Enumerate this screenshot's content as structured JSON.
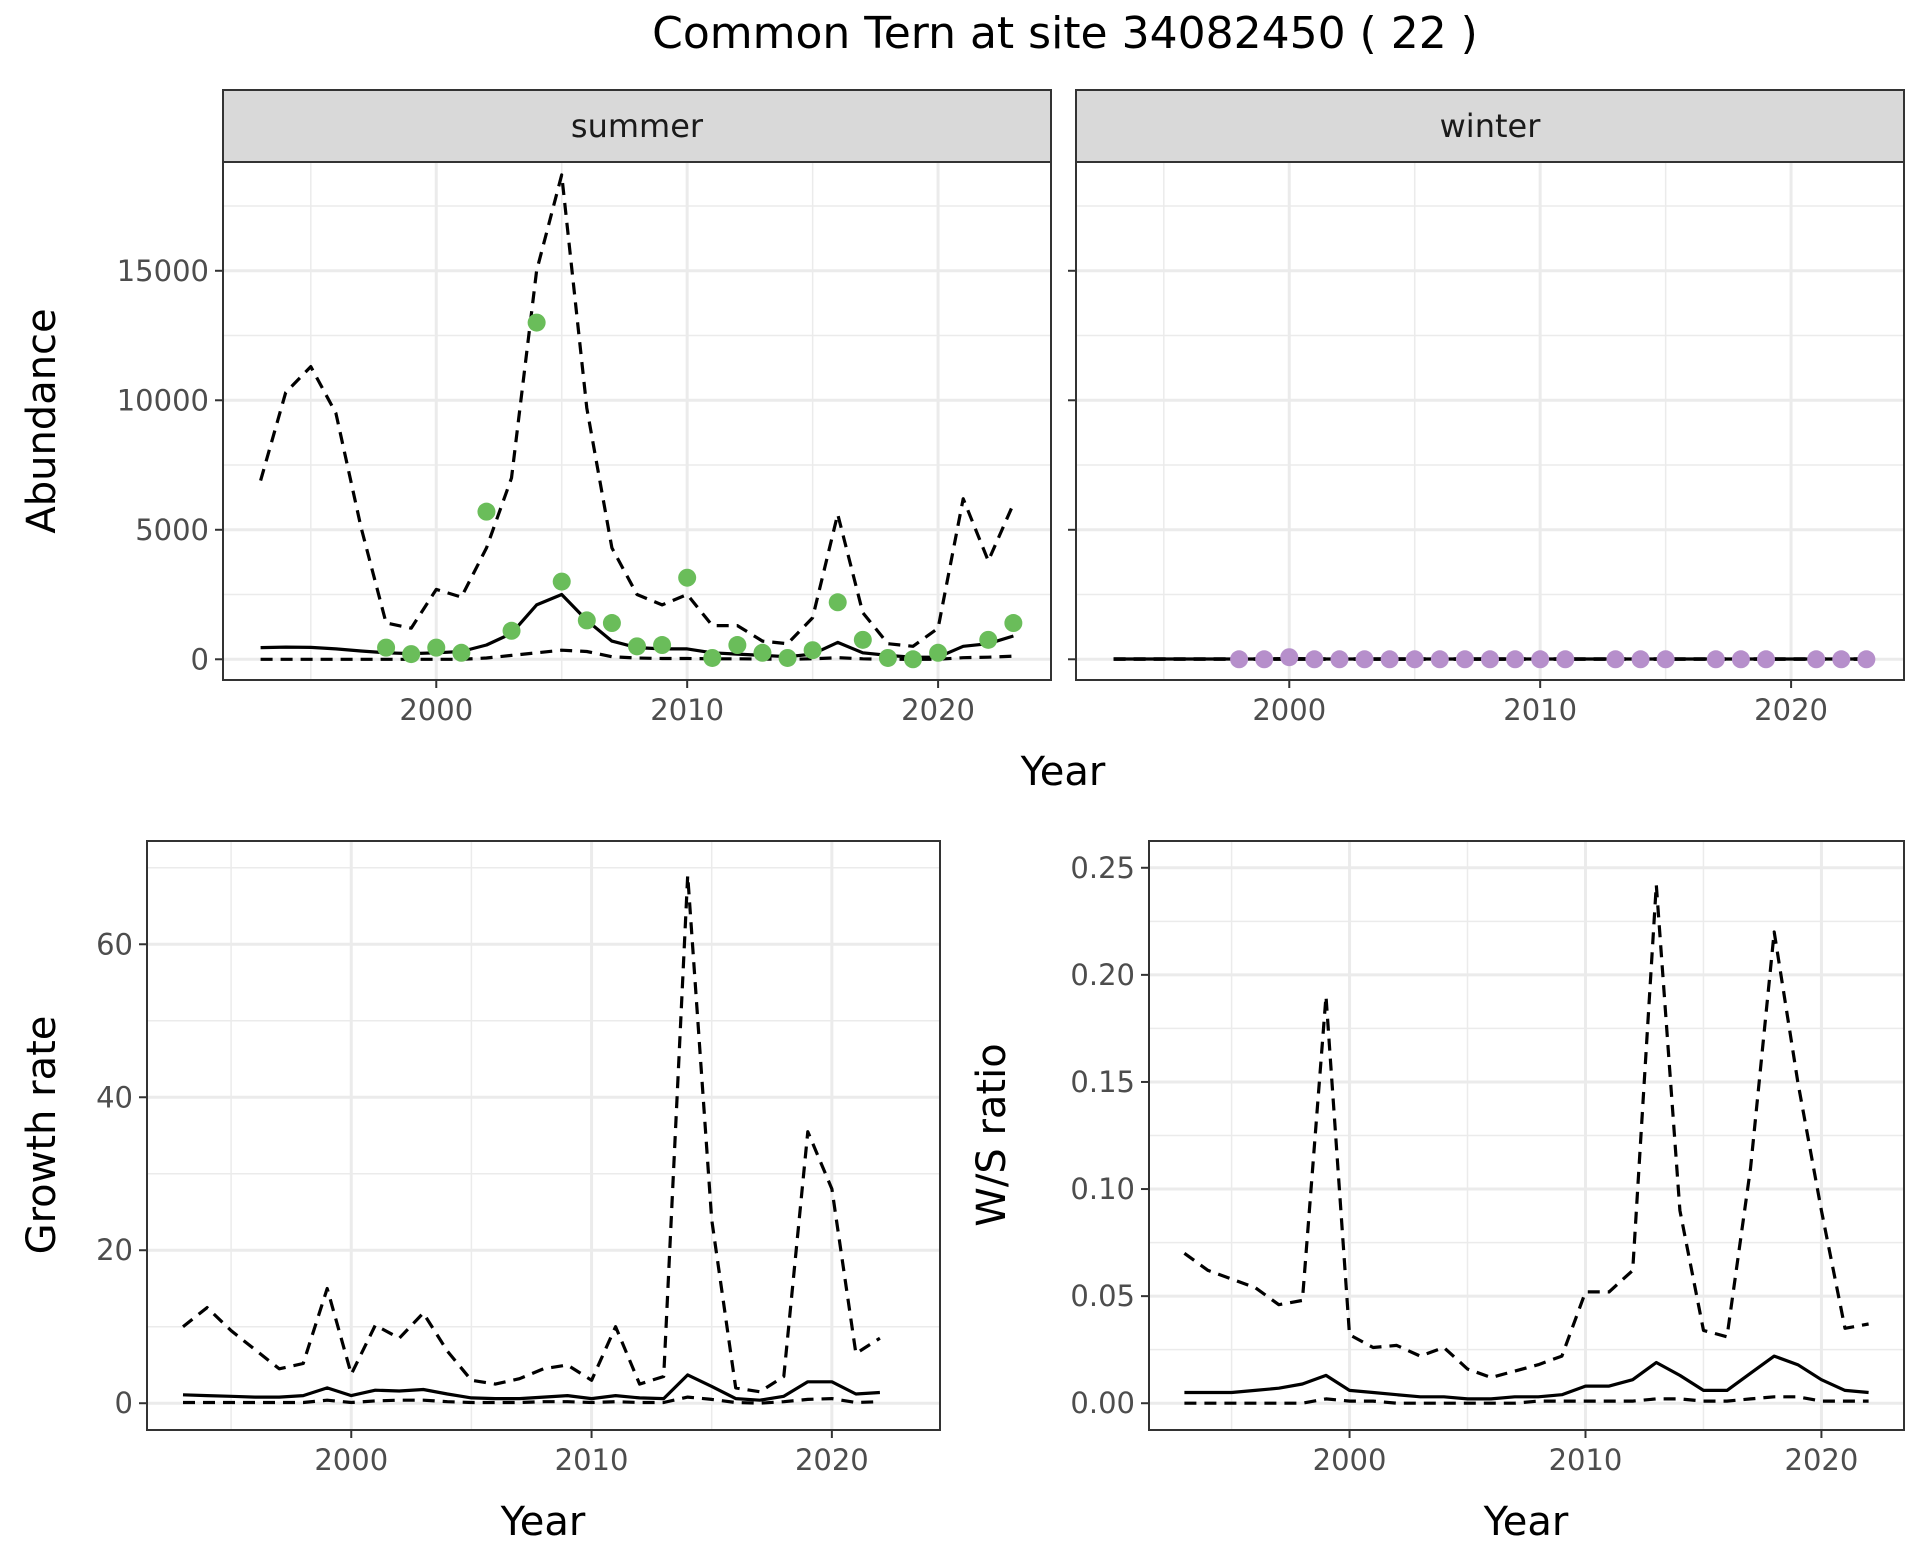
{
  "title": "Common Tern at site 34082450 ( 22 )",
  "colors": {
    "summer_points": "#6abd5a",
    "winter_points": "#b68fcb",
    "lines": "#000000"
  },
  "chart_data": [
    {
      "id": "summer",
      "type": "line",
      "strip": "summer",
      "ylabel": "Abundance",
      "xlabel": "Year",
      "xlim": [
        1991.5,
        2024.5
      ],
      "ylim": [
        -800,
        19200
      ],
      "xticks": [
        2000,
        2010,
        2020
      ],
      "yticks": [
        0,
        5000,
        10000,
        15000
      ],
      "x": [
        1993,
        1994,
        1995,
        1996,
        1997,
        1998,
        1999,
        2000,
        2001,
        2002,
        2003,
        2004,
        2005,
        2006,
        2007,
        2008,
        2009,
        2010,
        2011,
        2012,
        2013,
        2014,
        2015,
        2016,
        2017,
        2018,
        2019,
        2020,
        2021,
        2022,
        2023
      ],
      "estimate": [
        450,
        470,
        460,
        400,
        320,
        250,
        220,
        250,
        300,
        550,
        1000,
        2100,
        2500,
        1500,
        700,
        450,
        400,
        400,
        250,
        200,
        150,
        100,
        200,
        650,
        250,
        150,
        80,
        80,
        500,
        600,
        900
      ],
      "upper": [
        6900,
        10300,
        11300,
        9500,
        5100,
        1400,
        1200,
        2700,
        2400,
        4300,
        7000,
        15000,
        18700,
        9700,
        4300,
        2500,
        2100,
        2500,
        1300,
        1300,
        700,
        600,
        1600,
        5600,
        1800,
        600,
        500,
        1200,
        6200,
        3800,
        6000
      ],
      "lower": [
        0,
        0,
        0,
        0,
        0,
        0,
        0,
        0,
        0,
        50,
        150,
        250,
        350,
        300,
        100,
        50,
        30,
        30,
        20,
        20,
        10,
        0,
        20,
        60,
        20,
        0,
        0,
        0,
        60,
        80,
        120
      ],
      "points": {
        "x": [
          1998,
          1999,
          2000,
          2001,
          2002,
          2003,
          2004,
          2005,
          2006,
          2007,
          2008,
          2009,
          2010,
          2011,
          2012,
          2013,
          2014,
          2015,
          2016,
          2017,
          2018,
          2019,
          2020,
          2022,
          2023
        ],
        "y": [
          450,
          200,
          450,
          250,
          5700,
          1100,
          13000,
          3000,
          1500,
          1400,
          500,
          550,
          3150,
          50,
          550,
          250,
          50,
          350,
          2200,
          750,
          50,
          0,
          250,
          750,
          1400
        ]
      }
    },
    {
      "id": "winter",
      "type": "line",
      "strip": "winter",
      "xlabel": "Year",
      "xlim": [
        1991.5,
        2024.5
      ],
      "ylim": [
        -800,
        19200
      ],
      "xticks": [
        2000,
        2010,
        2020
      ],
      "x": [
        1993,
        1994,
        1995,
        1996,
        1997,
        1998,
        1999,
        2000,
        2001,
        2002,
        2003,
        2004,
        2005,
        2006,
        2007,
        2008,
        2009,
        2010,
        2011,
        2012,
        2013,
        2014,
        2015,
        2016,
        2017,
        2018,
        2019,
        2020,
        2021,
        2022,
        2023
      ],
      "estimate": [
        10,
        10,
        10,
        10,
        10,
        10,
        10,
        15,
        10,
        10,
        10,
        10,
        10,
        10,
        10,
        10,
        10,
        10,
        10,
        10,
        10,
        10,
        10,
        10,
        10,
        10,
        10,
        10,
        10,
        10,
        10
      ],
      "upper": [
        20,
        20,
        20,
        20,
        20,
        20,
        20,
        30,
        20,
        20,
        20,
        20,
        20,
        20,
        20,
        20,
        20,
        20,
        20,
        20,
        20,
        20,
        20,
        20,
        20,
        20,
        20,
        20,
        20,
        20,
        20
      ],
      "lower": [
        0,
        0,
        0,
        0,
        0,
        0,
        0,
        0,
        0,
        0,
        0,
        0,
        0,
        0,
        0,
        0,
        0,
        0,
        0,
        0,
        0,
        0,
        0,
        0,
        0,
        0,
        0,
        0,
        0,
        0,
        0
      ],
      "points": {
        "x": [
          1998,
          1999,
          2000,
          2001,
          2002,
          2003,
          2004,
          2005,
          2006,
          2007,
          2008,
          2009,
          2010,
          2011,
          2013,
          2014,
          2015,
          2017,
          2018,
          2019,
          2021,
          2022,
          2023
        ],
        "y": [
          0,
          0,
          80,
          0,
          0,
          0,
          0,
          0,
          0,
          0,
          0,
          0,
          0,
          0,
          0,
          0,
          0,
          0,
          0,
          0,
          0,
          0,
          0
        ]
      }
    },
    {
      "id": "growth",
      "type": "line",
      "ylabel": "Growth rate",
      "xlabel": "Year",
      "xlim": [
        1991.5,
        2024.5
      ],
      "ylim": [
        -3.5,
        73.5
      ],
      "xticks": [
        2000,
        2010,
        2020
      ],
      "yticks": [
        0,
        20,
        40,
        60
      ],
      "x": [
        1993,
        1994,
        1995,
        1996,
        1997,
        1998,
        1999,
        2000,
        2001,
        2002,
        2003,
        2004,
        2005,
        2006,
        2007,
        2008,
        2009,
        2010,
        2011,
        2012,
        2013,
        2014,
        2015,
        2016,
        2017,
        2018,
        2019,
        2020,
        2021,
        2022
      ],
      "estimate": [
        1.1,
        1.0,
        0.9,
        0.8,
        0.8,
        1.0,
        2.0,
        1.0,
        1.7,
        1.6,
        1.8,
        1.2,
        0.7,
        0.6,
        0.6,
        0.8,
        1.0,
        0.6,
        1.0,
        0.7,
        0.6,
        3.7,
        2.2,
        0.6,
        0.4,
        0.9,
        2.8,
        2.8,
        1.2,
        1.4
      ],
      "upper": [
        10.0,
        12.5,
        9.5,
        7.0,
        4.5,
        5.2,
        15.0,
        3.8,
        10.2,
        8.5,
        11.8,
        6.8,
        3.0,
        2.5,
        3.2,
        4.5,
        5.0,
        3.0,
        10.0,
        2.5,
        3.5,
        69.0,
        24.0,
        2.0,
        1.5,
        3.5,
        35.5,
        28.0,
        6.5,
        8.5
      ],
      "lower": [
        0.1,
        0.1,
        0.1,
        0.1,
        0.1,
        0.1,
        0.4,
        0.1,
        0.3,
        0.4,
        0.4,
        0.2,
        0.1,
        0.1,
        0.1,
        0.2,
        0.2,
        0.1,
        0.2,
        0.1,
        0.1,
        0.8,
        0.5,
        0.1,
        0.0,
        0.2,
        0.5,
        0.6,
        0.1,
        0.2
      ]
    },
    {
      "id": "ratio",
      "type": "line",
      "ylabel": "W/S ratio",
      "xlabel": "Year",
      "xlim": [
        1991.5,
        2023.5
      ],
      "ylim": [
        -0.0125,
        0.2625
      ],
      "xticks": [
        2000,
        2010,
        2020
      ],
      "yticks": [
        0.0,
        0.05,
        0.1,
        0.15,
        0.2,
        0.25
      ],
      "ytick_labels": [
        "0.00",
        "0.05",
        "0.10",
        "0.15",
        "0.20",
        "0.25"
      ],
      "x": [
        1993,
        1994,
        1995,
        1996,
        1997,
        1998,
        1999,
        2000,
        2001,
        2002,
        2003,
        2004,
        2005,
        2006,
        2007,
        2008,
        2009,
        2010,
        2011,
        2012,
        2013,
        2014,
        2015,
        2016,
        2017,
        2018,
        2019,
        2020,
        2021,
        2022
      ],
      "estimate": [
        0.005,
        0.005,
        0.005,
        0.006,
        0.007,
        0.009,
        0.013,
        0.006,
        0.005,
        0.004,
        0.003,
        0.003,
        0.002,
        0.002,
        0.003,
        0.003,
        0.004,
        0.008,
        0.008,
        0.011,
        0.019,
        0.013,
        0.006,
        0.006,
        0.014,
        0.022,
        0.018,
        0.011,
        0.006,
        0.005
      ],
      "upper": [
        0.07,
        0.062,
        0.058,
        0.054,
        0.046,
        0.048,
        0.19,
        0.032,
        0.026,
        0.027,
        0.022,
        0.026,
        0.016,
        0.012,
        0.015,
        0.018,
        0.022,
        0.052,
        0.052,
        0.062,
        0.242,
        0.09,
        0.034,
        0.031,
        0.11,
        0.22,
        0.15,
        0.09,
        0.035,
        0.037
      ],
      "lower": [
        0.0,
        0.0,
        0.0,
        0.0,
        0.0,
        0.0,
        0.002,
        0.001,
        0.001,
        0.0,
        0.0,
        0.0,
        0.0,
        0.0,
        0.0,
        0.001,
        0.001,
        0.001,
        0.001,
        0.001,
        0.002,
        0.002,
        0.001,
        0.001,
        0.002,
        0.003,
        0.003,
        0.001,
        0.001,
        0.001
      ]
    }
  ]
}
